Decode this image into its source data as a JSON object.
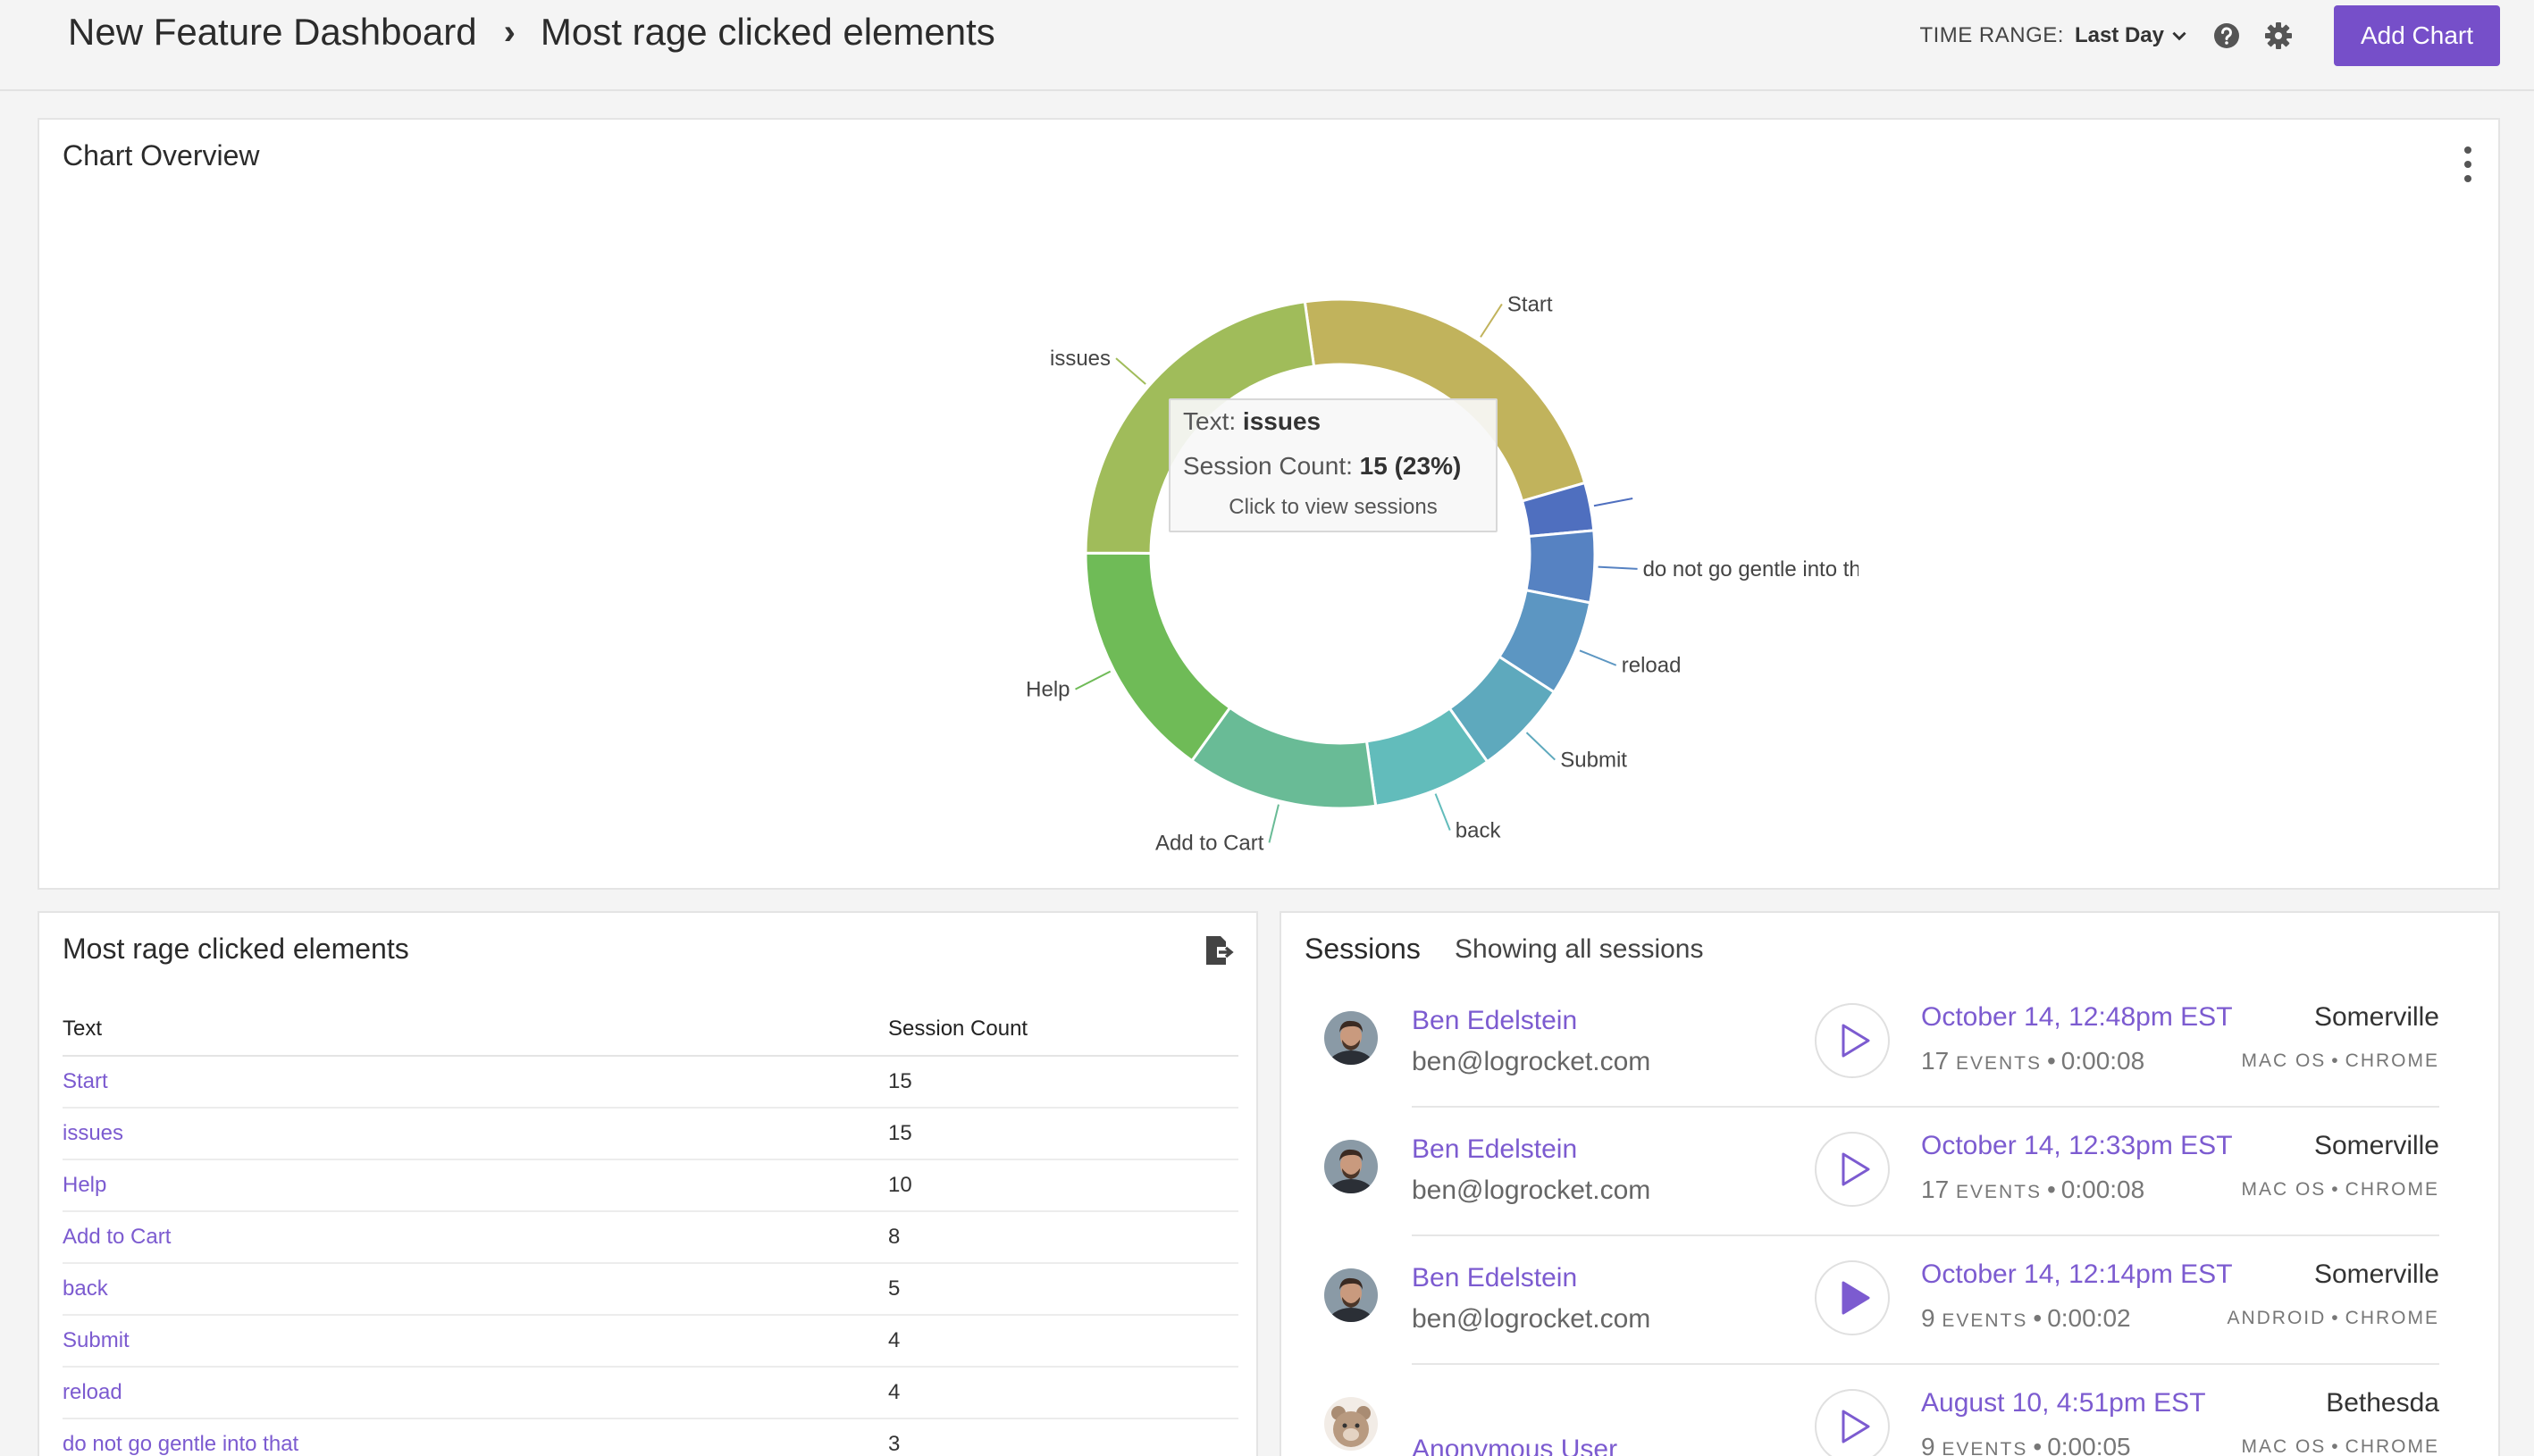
{
  "header": {
    "breadcrumb_root": "New Feature Dashboard",
    "breadcrumb_current": "Most rage clicked elements",
    "time_range_label": "TIME RANGE:",
    "time_range_value": "Last Day",
    "add_chart_label": "Add Chart"
  },
  "overview": {
    "title": "Chart Overview",
    "tooltip": {
      "text_label": "Text:",
      "text_value": "issues",
      "count_label": "Session Count:",
      "count_value": "15 (23%)",
      "hint": "Click to view sessions"
    }
  },
  "chart_data": {
    "type": "pie",
    "categories": [
      "Start",
      "",
      "do not go gentle into that",
      "reload",
      "Submit",
      "back",
      "Add to Cart",
      "Help",
      "issues"
    ],
    "values": [
      15,
      2,
      3,
      4,
      4,
      5,
      8,
      10,
      15
    ],
    "colors": [
      "#c1b35c",
      "#4f6fbf",
      "#5682c2",
      "#5c96c2",
      "#5ea9bd",
      "#62bcbb",
      "#69bb96",
      "#6fbb57",
      "#a0bc5a"
    ],
    "legend": "none"
  },
  "table": {
    "title": "Most rage clicked elements",
    "columns": [
      "Text",
      "Session Count"
    ],
    "rows": [
      {
        "text": "Start",
        "count": "15"
      },
      {
        "text": "issues",
        "count": "15"
      },
      {
        "text": "Help",
        "count": "10"
      },
      {
        "text": "Add to Cart",
        "count": "8"
      },
      {
        "text": "back",
        "count": "5"
      },
      {
        "text": "Submit",
        "count": "4"
      },
      {
        "text": "reload",
        "count": "4"
      },
      {
        "text": "do not go gentle into that",
        "count": "3"
      }
    ]
  },
  "sessions": {
    "title": "Sessions",
    "subtitle": "Showing all sessions",
    "items": [
      {
        "name": "Ben Edelstein",
        "email": "ben@logrocket.com",
        "date": "October 14, 12:48pm EST",
        "events": "17",
        "events_label": "EVENTS",
        "duration": "0:00:08",
        "location": "Somerville",
        "os": "MAC OS",
        "browser": "CHROME"
      },
      {
        "name": "Ben Edelstein",
        "email": "ben@logrocket.com",
        "date": "October 14, 12:33pm EST",
        "events": "17",
        "events_label": "EVENTS",
        "duration": "0:00:08",
        "location": "Somerville",
        "os": "MAC OS",
        "browser": "CHROME"
      },
      {
        "name": "Ben Edelstein",
        "email": "ben@logrocket.com",
        "date": "October 14, 12:14pm EST",
        "events": "9",
        "events_label": "EVENTS",
        "duration": "0:00:02",
        "location": "Somerville",
        "os": "ANDROID",
        "browser": "CHROME"
      },
      {
        "name": "Anonymous User",
        "email": "",
        "date": "August 10, 4:51pm EST",
        "events": "9",
        "events_label": "EVENTS",
        "duration": "0:00:05",
        "location": "Bethesda",
        "os": "MAC OS",
        "browser": "CHROME"
      }
    ]
  }
}
